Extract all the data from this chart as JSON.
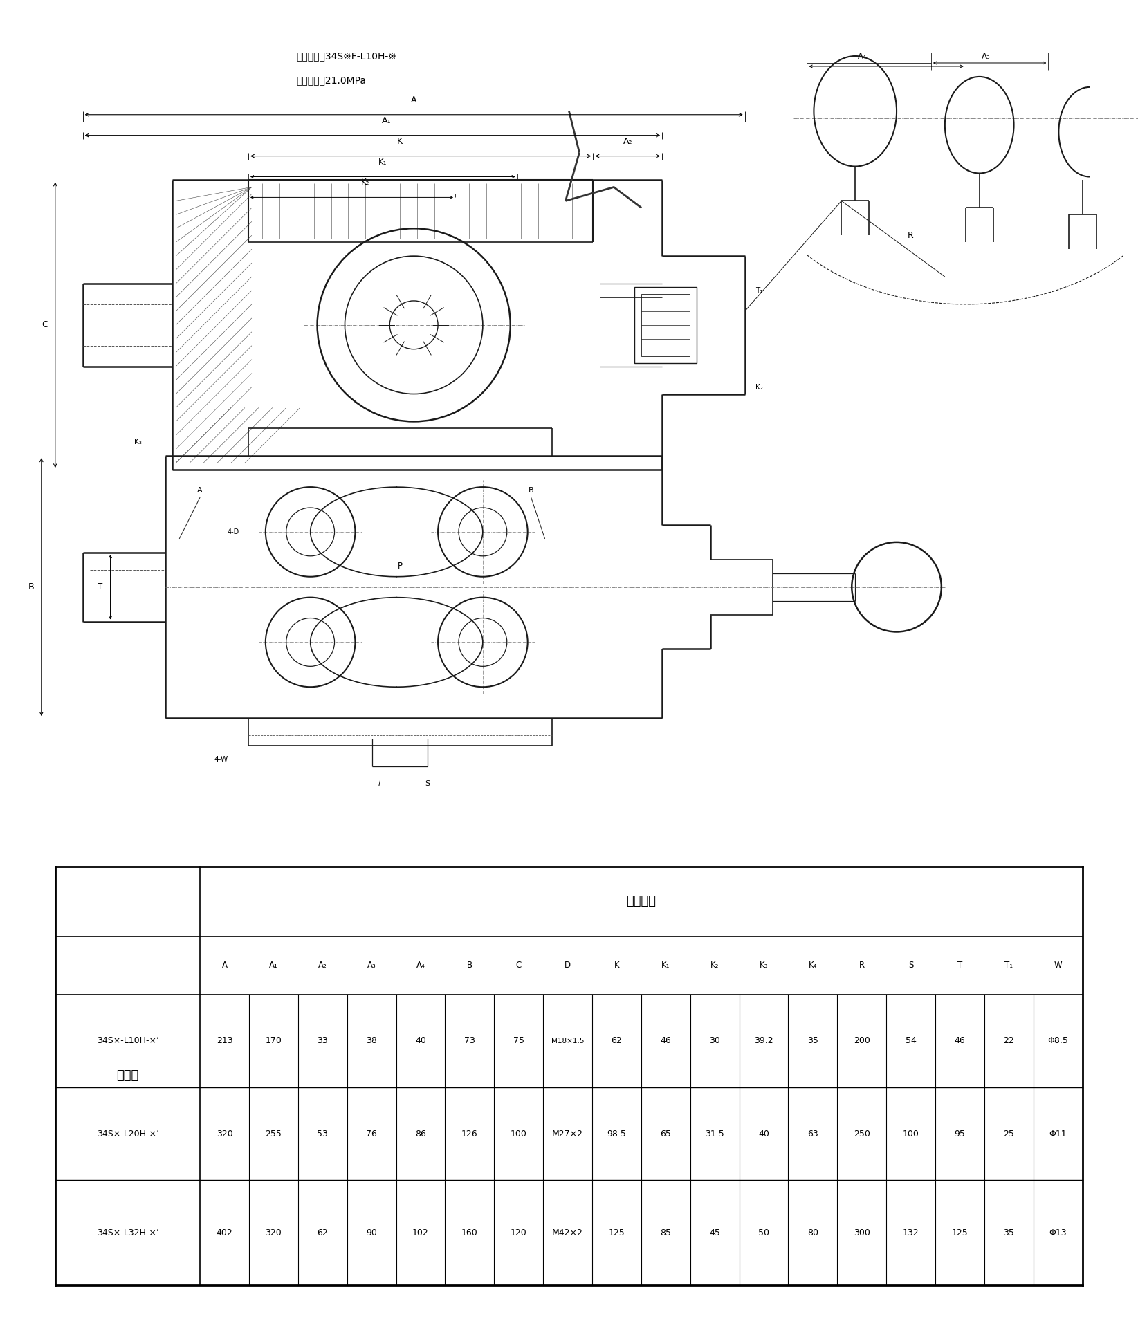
{
  "title_line1": "螺纹连接： 34S×F-L10H-×",
  "title_line2": "公称压力： 21.0MPa",
  "bg_color": "#ffffff",
  "col_headers": [
    "A",
    "A₁",
    "A₂",
    "A₃",
    "A₄",
    "B",
    "C",
    "D",
    "K",
    "K₁",
    "K₂",
    "K₃",
    "K₄",
    "R",
    "S",
    "T",
    "T₁",
    "W"
  ],
  "rows": [
    {
      "model": "34S×-L10H-×’",
      "values": [
        "213",
        "170",
        "33",
        "38",
        "40",
        "73",
        "75",
        "M18×1.5",
        "62",
        "46",
        "30",
        "39.2",
        "35",
        "200",
        "54",
        "46",
        "22",
        "Φ8.5"
      ]
    },
    {
      "model": "34S×-L20H-×’",
      "values": [
        "320",
        "255",
        "53",
        "76",
        "86",
        "126",
        "100",
        "M27×2",
        "98.5",
        "65",
        "31.5",
        "40",
        "63",
        "250",
        "100",
        "95",
        "25",
        "Φ11"
      ]
    },
    {
      "model": "34S×-L32H-×’",
      "values": [
        "402",
        "320",
        "62",
        "90",
        "102",
        "160",
        "120",
        "M42×2",
        "125",
        "85",
        "45",
        "50",
        "80",
        "300",
        "132",
        "125",
        "35",
        "Φ13"
      ]
    }
  ]
}
